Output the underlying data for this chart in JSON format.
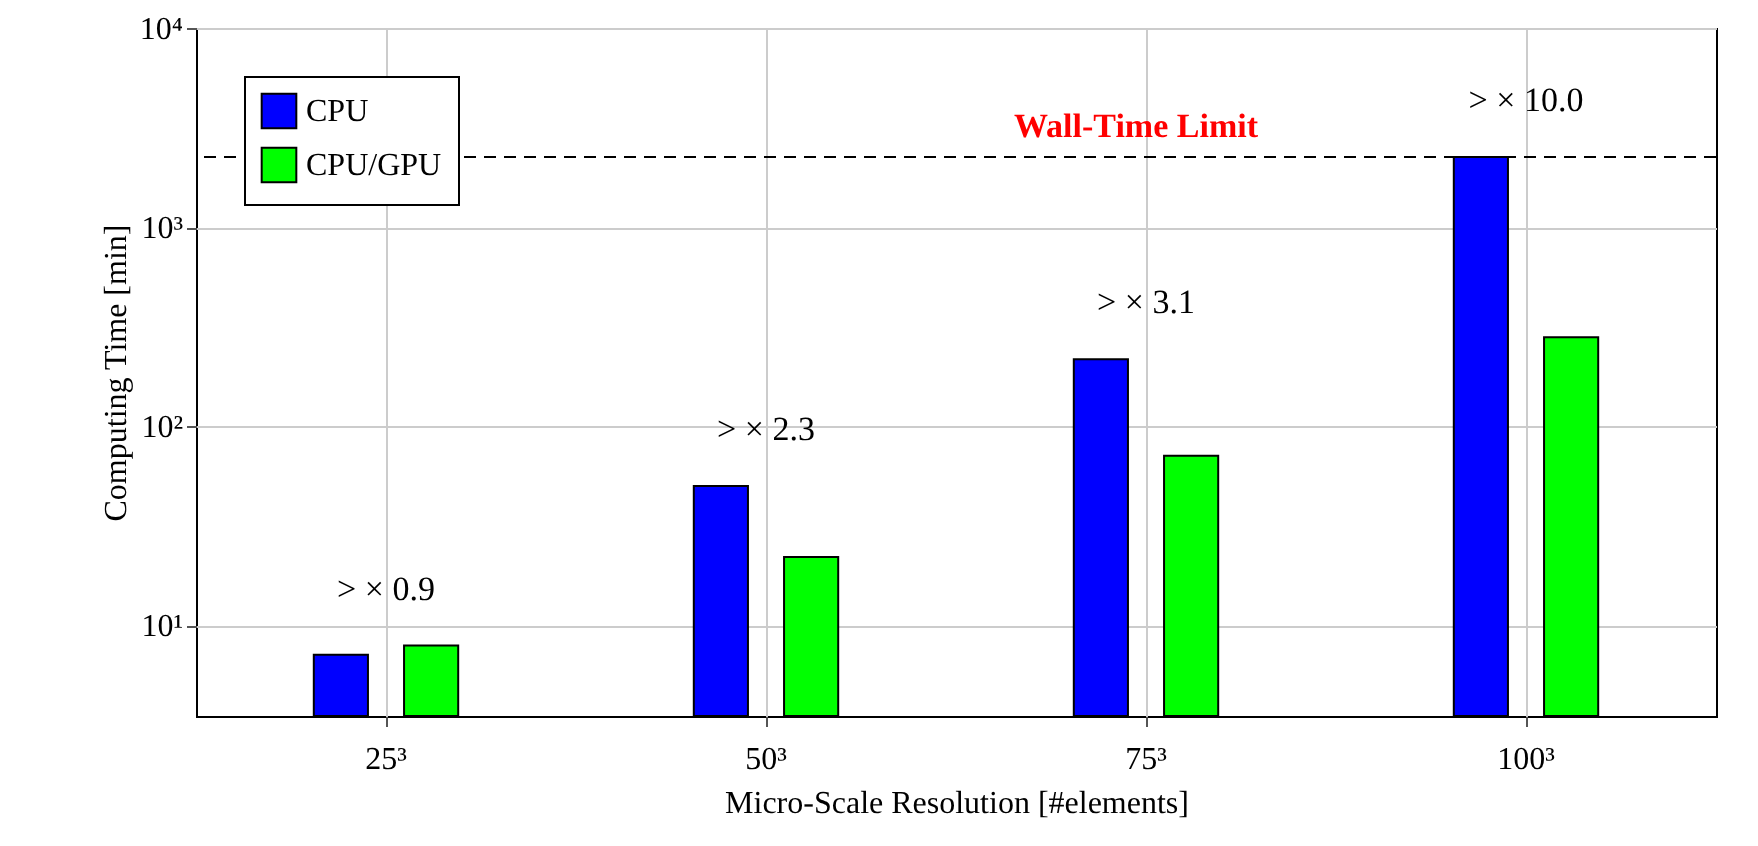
{
  "chart_data": {
    "type": "bar",
    "xlabel": "Micro-Scale Resolution [#elements]",
    "ylabel": "Computing Time [min]",
    "categories": [
      "25³",
      "50³",
      "75³",
      "100³"
    ],
    "series": [
      {
        "name": "CPU",
        "color": "#0000ff",
        "values": [
          7.1,
          50,
          217,
          2250
        ]
      },
      {
        "name": "CPU/GPU",
        "color": "#00ff00",
        "values": [
          7.9,
          22,
          71,
          280
        ]
      }
    ],
    "log": "y",
    "ylim": [
      3.5,
      10000
    ],
    "yticks": [
      {
        "value": 10,
        "label": "10¹"
      },
      {
        "value": 100,
        "label": "10²"
      },
      {
        "value": 1000,
        "label": "10³"
      },
      {
        "value": 10000,
        "label": "10⁴"
      }
    ],
    "ref_lines": [
      {
        "axis": "y",
        "value": 2250,
        "label": "Wall-Time Limit",
        "line_style": "dashed"
      }
    ],
    "annotations": [
      "> × 0.9",
      "> × 2.3",
      "> × 3.1",
      "> × 10.0"
    ],
    "grid": true,
    "legend": "top left"
  }
}
